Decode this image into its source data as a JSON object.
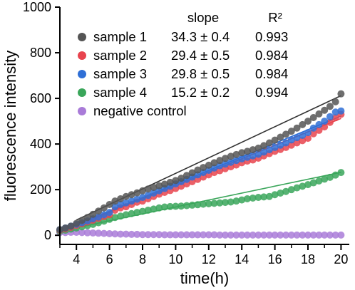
{
  "chart_data": {
    "type": "scatter",
    "title": "",
    "xlabel": "time(h)",
    "ylabel": "fluorescence intensity",
    "xlim": [
      3,
      20.5
    ],
    "ylim": [
      -40,
      1000
    ],
    "xticks": [
      4,
      6,
      8,
      10,
      12,
      14,
      16,
      18,
      20
    ],
    "yticks": [
      0,
      200,
      400,
      600,
      800,
      1000
    ],
    "grid": false,
    "legend_position": "top-left",
    "legend_headers": {
      "slope": "slope",
      "r2": "R²"
    },
    "x": [
      3.0,
      3.333,
      3.667,
      4.0,
      4.333,
      4.667,
      5.0,
      5.333,
      5.667,
      6.0,
      6.333,
      6.667,
      7.0,
      7.333,
      7.667,
      8.0,
      8.333,
      8.667,
      9.0,
      9.333,
      9.667,
      10.0,
      10.333,
      10.667,
      11.0,
      11.333,
      11.667,
      12.0,
      12.333,
      12.667,
      13.0,
      13.333,
      13.667,
      14.0,
      14.333,
      14.667,
      15.0,
      15.333,
      15.667,
      16.0,
      16.333,
      16.667,
      17.0,
      17.333,
      17.667,
      18.0,
      18.333,
      18.667,
      19.0,
      19.333,
      19.667,
      20.0
    ],
    "series": [
      {
        "name": "sample 1",
        "slope": "34.3 ± 0.4",
        "r2": "0.993",
        "color": "#555555",
        "values": [
          25,
          32,
          40,
          52,
          65,
          78,
          92,
          106,
          120,
          135,
          150,
          160,
          170,
          178,
          186,
          195,
          203,
          210,
          217,
          224,
          232,
          240,
          250,
          262,
          274,
          286,
          297,
          307,
          318,
          328,
          337,
          346,
          354,
          362,
          368,
          375,
          382,
          393,
          405,
          417,
          430,
          443,
          456,
          470,
          485,
          500,
          516,
          532,
          548,
          565,
          585,
          620
        ]
      },
      {
        "name": "sample 2",
        "slope": "29.4 ± 0.5",
        "r2": "0.984",
        "color": "#e8444e",
        "values": [
          22,
          28,
          35,
          43,
          50,
          58,
          66,
          74,
          82,
          90,
          110,
          120,
          125,
          135,
          145,
          150,
          160,
          170,
          180,
          188,
          196,
          205,
          215,
          225,
          235,
          245,
          255,
          265,
          275,
          283,
          292,
          300,
          308,
          318,
          325,
          330,
          338,
          348,
          358,
          368,
          376,
          385,
          395,
          405,
          415,
          425,
          445,
          460,
          475,
          495,
          515,
          530
        ]
      },
      {
        "name": "sample 3",
        "slope": "29.8 ± 0.5",
        "r2": "0.984",
        "color": "#2f6fd6",
        "values": [
          25,
          32,
          40,
          48,
          55,
          63,
          72,
          80,
          90,
          100,
          125,
          135,
          142,
          150,
          158,
          166,
          175,
          185,
          195,
          205,
          215,
          225,
          235,
          245,
          255,
          265,
          275,
          285,
          295,
          305,
          312,
          320,
          328,
          335,
          342,
          348,
          355,
          365,
          375,
          385,
          395,
          405,
          418,
          428,
          438,
          450,
          470,
          485,
          500,
          520,
          540,
          545
        ]
      },
      {
        "name": "sample 4",
        "slope": "15.2 ± 0.2",
        "r2": "0.994",
        "color": "#3aa65a",
        "values": [
          18,
          22,
          27,
          32,
          37,
          42,
          48,
          55,
          62,
          70,
          78,
          84,
          90,
          95,
          100,
          105,
          110,
          115,
          120,
          124,
          126,
          127,
          128,
          130,
          132,
          134,
          136,
          138,
          140,
          142,
          144,
          146,
          150,
          155,
          160,
          163,
          166,
          168,
          170,
          178,
          185,
          192,
          200,
          208,
          215,
          222,
          230,
          238,
          246,
          254,
          264,
          275
        ]
      },
      {
        "name": "negative control",
        "slope": "",
        "r2": "",
        "color": "#a97bd8",
        "values": [
          12,
          12,
          13,
          13,
          12,
          11,
          10,
          9,
          8,
          7,
          6,
          5,
          5,
          4,
          4,
          3,
          3,
          3,
          3,
          2,
          2,
          2,
          2,
          2,
          2,
          2,
          2,
          2,
          2,
          1,
          1,
          1,
          1,
          1,
          1,
          1,
          1,
          1,
          1,
          1,
          1,
          1,
          1,
          1,
          1,
          1,
          1,
          1,
          1,
          1,
          1,
          1
        ]
      }
    ],
    "fit_lines": [
      {
        "series": "sample 1",
        "x": [
          4,
          20
        ],
        "y": [
          67,
          612
        ],
        "color": "#333333"
      },
      {
        "series": "sample 2",
        "x": [
          4,
          20
        ],
        "y": [
          42,
          512
        ],
        "color": "#e8444e"
      },
      {
        "series": "sample 3",
        "x": [
          4,
          20
        ],
        "y": [
          46,
          522
        ],
        "color": "#2f6fd6"
      },
      {
        "series": "sample 4",
        "x": [
          4,
          20
        ],
        "y": [
          33,
          276
        ],
        "color": "#3aa65a"
      }
    ]
  }
}
